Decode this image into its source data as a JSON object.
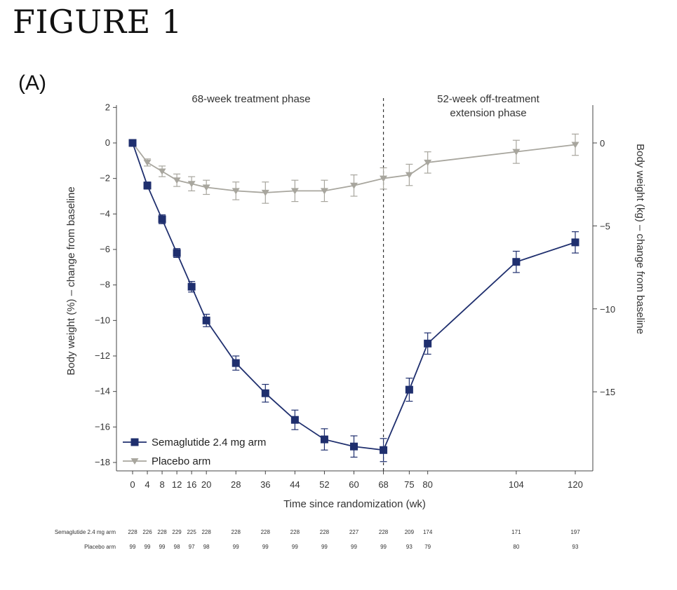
{
  "figure": {
    "title": "FIGURE 1",
    "panel_label": "(A)"
  },
  "chart_data": {
    "type": "line",
    "title": "",
    "xlabel": "Time since randomization (wk)",
    "ylabel": "Body weight (%) – change from baseline",
    "y2label": "Body weight (kg) – change from baseline",
    "xticks": [
      0,
      4,
      8,
      12,
      16,
      20,
      28,
      36,
      44,
      52,
      60,
      68,
      75,
      80,
      104,
      120
    ],
    "yticks": [
      2,
      0,
      -2,
      -4,
      -6,
      -8,
      -10,
      -12,
      -14,
      -16,
      -18
    ],
    "ylim": [
      -18.4,
      2
    ],
    "y2ticks": [
      0,
      -5,
      -10,
      -15
    ],
    "y2_scale_kg_per_percent": 1.07,
    "phase_divider_week": 68,
    "phases": [
      {
        "label": "68-week treatment phase"
      },
      {
        "label_lines": [
          "52-week off-treatment",
          "extension phase"
        ]
      }
    ],
    "legend_position": "bottom-left",
    "series": [
      {
        "name": "Semaglutide 2.4 mg arm",
        "color": "#1f2f6e",
        "marker": "square",
        "x": [
          0,
          4,
          8,
          12,
          16,
          20,
          28,
          36,
          44,
          52,
          60,
          68,
          75,
          80,
          104,
          120
        ],
        "y": [
          0,
          -2.4,
          -4.3,
          -6.2,
          -8.1,
          -10.0,
          -12.4,
          -14.1,
          -15.6,
          -16.7,
          -17.1,
          -17.3,
          -13.9,
          -11.3,
          -6.7,
          -5.6
        ],
        "err": [
          0.15,
          0.2,
          0.25,
          0.25,
          0.3,
          0.35,
          0.4,
          0.5,
          0.55,
          0.6,
          0.6,
          0.65,
          0.65,
          0.6,
          0.6,
          0.6
        ]
      },
      {
        "name": "Placebo arm",
        "color": "#a8a69e",
        "marker": "triangle-down",
        "x": [
          0,
          4,
          8,
          12,
          16,
          20,
          28,
          36,
          44,
          52,
          60,
          68,
          75,
          80,
          104,
          120
        ],
        "y": [
          0,
          -1.1,
          -1.6,
          -2.1,
          -2.3,
          -2.5,
          -2.7,
          -2.8,
          -2.7,
          -2.7,
          -2.4,
          -2.0,
          -1.8,
          -1.1,
          -0.5,
          -0.1
        ],
        "err": [
          0.1,
          0.2,
          0.3,
          0.35,
          0.4,
          0.4,
          0.5,
          0.6,
          0.6,
          0.6,
          0.6,
          0.6,
          0.6,
          0.6,
          0.65,
          0.6
        ]
      }
    ],
    "at_risk": {
      "rows": [
        {
          "label": "Semaglutide 2.4 mg arm",
          "values": [
            "228",
            "226",
            "228",
            "229",
            "225",
            "228",
            "228",
            "228",
            "228",
            "228",
            "227",
            "228",
            "209",
            "174",
            "171",
            "197"
          ]
        },
        {
          "label": "Placebo arm",
          "values": [
            "99",
            "99",
            "99",
            "98",
            "97",
            "98",
            "99",
            "99",
            "99",
            "99",
            "99",
            "99",
            "93",
            "79",
            "80",
            "93"
          ]
        }
      ]
    }
  }
}
